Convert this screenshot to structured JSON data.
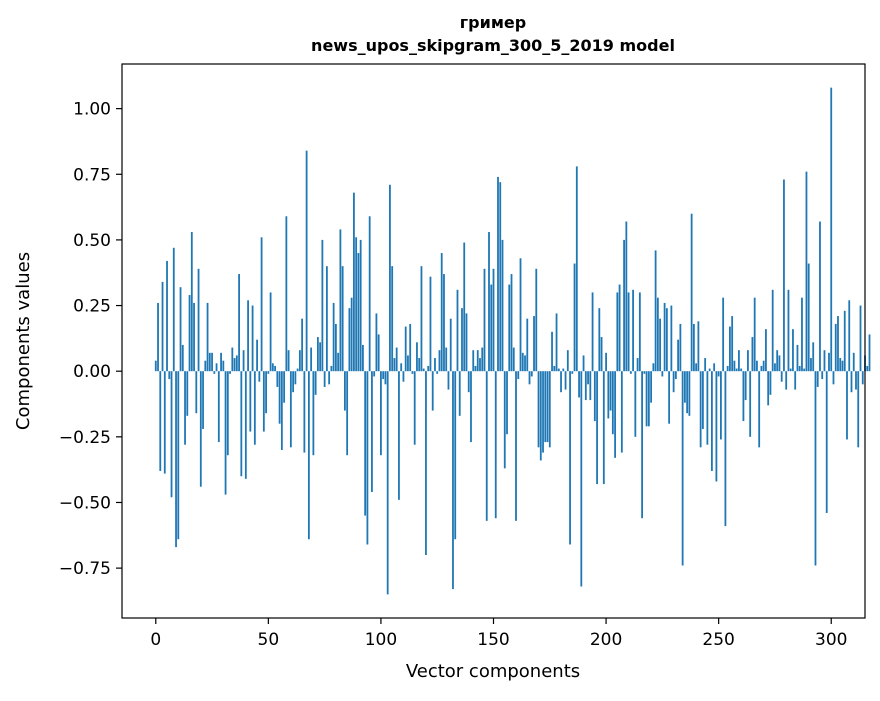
{
  "chart_data": {
    "type": "bar",
    "title": "гример",
    "subtitle": "news_upos_skipgram_300_5_2019 model",
    "xlabel": "Vector components",
    "ylabel": "Components values",
    "xlim": [
      -15,
      315
    ],
    "ylim": [
      -0.94,
      1.17
    ],
    "xticks": [
      0,
      50,
      100,
      150,
      200,
      250,
      300
    ],
    "xtick_labels": [
      "0",
      "50",
      "100",
      "150",
      "200",
      "250",
      "300"
    ],
    "yticks": [
      -0.75,
      -0.5,
      -0.25,
      0.0,
      0.25,
      0.5,
      0.75,
      1.0
    ],
    "ytick_labels": [
      "−0.75",
      "−0.50",
      "−0.25",
      "0.00",
      "0.25",
      "0.50",
      "0.75",
      "1.00"
    ],
    "grid": false,
    "bar_color": "#1f77b4",
    "values": [
      0.04,
      0.26,
      -0.38,
      0.34,
      -0.39,
      0.42,
      -0.03,
      -0.48,
      0.47,
      -0.67,
      -0.64,
      0.32,
      0.1,
      -0.28,
      -0.17,
      0.29,
      0.53,
      0.26,
      -0.16,
      0.39,
      -0.44,
      -0.22,
      0.04,
      0.26,
      0.07,
      0.07,
      -0.01,
      0.03,
      -0.27,
      0.07,
      0.04,
      -0.47,
      -0.32,
      -0.01,
      0.09,
      0.05,
      0.06,
      0.37,
      -0.4,
      0.08,
      -0.41,
      0.27,
      -0.23,
      0.25,
      -0.28,
      0.12,
      -0.04,
      0.51,
      -0.23,
      -0.16,
      -0.01,
      0.3,
      0.03,
      0.02,
      -0.06,
      -0.2,
      -0.3,
      -0.12,
      0.59,
      0.08,
      -0.29,
      -0.08,
      -0.05,
      0.01,
      0.08,
      0.2,
      -0.31,
      0.84,
      -0.64,
      0.09,
      -0.32,
      -0.09,
      0.13,
      0.11,
      0.5,
      -0.06,
      0.4,
      -0.05,
      0.02,
      0.26,
      0.18,
      0.07,
      0.54,
      0.4,
      -0.15,
      -0.32,
      0.24,
      0.28,
      0.68,
      0.51,
      0.45,
      0.5,
      0.1,
      -0.55,
      -0.66,
      0.59,
      -0.46,
      -0.02,
      0.22,
      0.14,
      -0.32,
      -0.03,
      -0.05,
      -0.85,
      0.71,
      0.4,
      0.05,
      0.09,
      -0.49,
      0.03,
      -0.04,
      0.17,
      0.06,
      0.18,
      -0.01,
      -0.28,
      0.11,
      0.05,
      0.4,
      0.01,
      -0.7,
      0.02,
      0.36,
      -0.15,
      0.05,
      -0.01,
      0.08,
      0.45,
      0.37,
      0.09,
      -0.07,
      0.2,
      -0.83,
      -0.64,
      0.31,
      -0.17,
      0.24,
      0.49,
      0.22,
      -0.08,
      -0.27,
      0.08,
      0.02,
      0.08,
      0.05,
      0.09,
      0.39,
      -0.57,
      0.53,
      0.33,
      0.39,
      -0.56,
      0.74,
      0.72,
      0.5,
      -0.37,
      -0.24,
      0.33,
      0.37,
      0.09,
      -0.57,
      -0.03,
      0.43,
      0.07,
      0.06,
      0.2,
      -0.05,
      -0.02,
      0.21,
      0.39,
      -0.29,
      -0.34,
      -0.31,
      -0.27,
      -0.27,
      -0.29,
      0.15,
      0.02,
      0.22,
      0.01,
      -0.08,
      0.01,
      -0.07,
      0.08,
      -0.66,
      -0.01,
      0.41,
      0.78,
      -0.1,
      -0.82,
      0.06,
      -0.11,
      -0.05,
      -0.11,
      0.3,
      -0.19,
      -0.43,
      0.24,
      0.13,
      -0.43,
      0.07,
      -0.18,
      -0.15,
      -0.24,
      -0.33,
      0.3,
      0.33,
      -0.31,
      0.5,
      0.57,
      0.3,
      -0.01,
      0.31,
      -0.25,
      0.05,
      0.3,
      -0.56,
      -0.01,
      -0.21,
      -0.21,
      -0.12,
      0.03,
      0.46,
      0.28,
      0.2,
      -0.02,
      0.26,
      0.24,
      -0.2,
      0.25,
      -0.08,
      -0.03,
      0.12,
      0.18,
      -0.74,
      -0.12,
      -0.16,
      -0.17,
      0.6,
      0.18,
      0.03,
      0.19,
      -0.29,
      -0.22,
      0.05,
      -0.28,
      0.01,
      -0.38,
      0.03,
      -0.42,
      -0.02,
      -0.26,
      0.28,
      -0.59,
      0.02,
      0.17,
      0.21,
      0.04,
      0.01,
      0.08,
      0.01,
      -0.19,
      -0.11,
      0.08,
      -0.25,
      0.13,
      0.28,
      0.04,
      -0.29,
      0.02,
      0.04,
      0.16,
      -0.13,
      -0.09,
      0.31,
      0.03,
      0.08,
      0.06,
      -0.04,
      0.73,
      -0.07,
      0.31,
      0.01,
      0.16,
      -0.07,
      0.1,
      0.02,
      0.28,
      0.01,
      0.76,
      0.41,
      0.05,
      0.11,
      -0.74,
      -0.06,
      0.57,
      -0.03,
      0.08,
      -0.54,
      0.07,
      1.08,
      -0.05,
      0.18,
      0.21,
      0.05,
      0.04,
      0.23,
      -0.26,
      0.27,
      -0.08,
      0.07,
      -0.07,
      -0.29,
      0.25,
      -0.05,
      0.06,
      0.02,
      0.14
    ]
  }
}
